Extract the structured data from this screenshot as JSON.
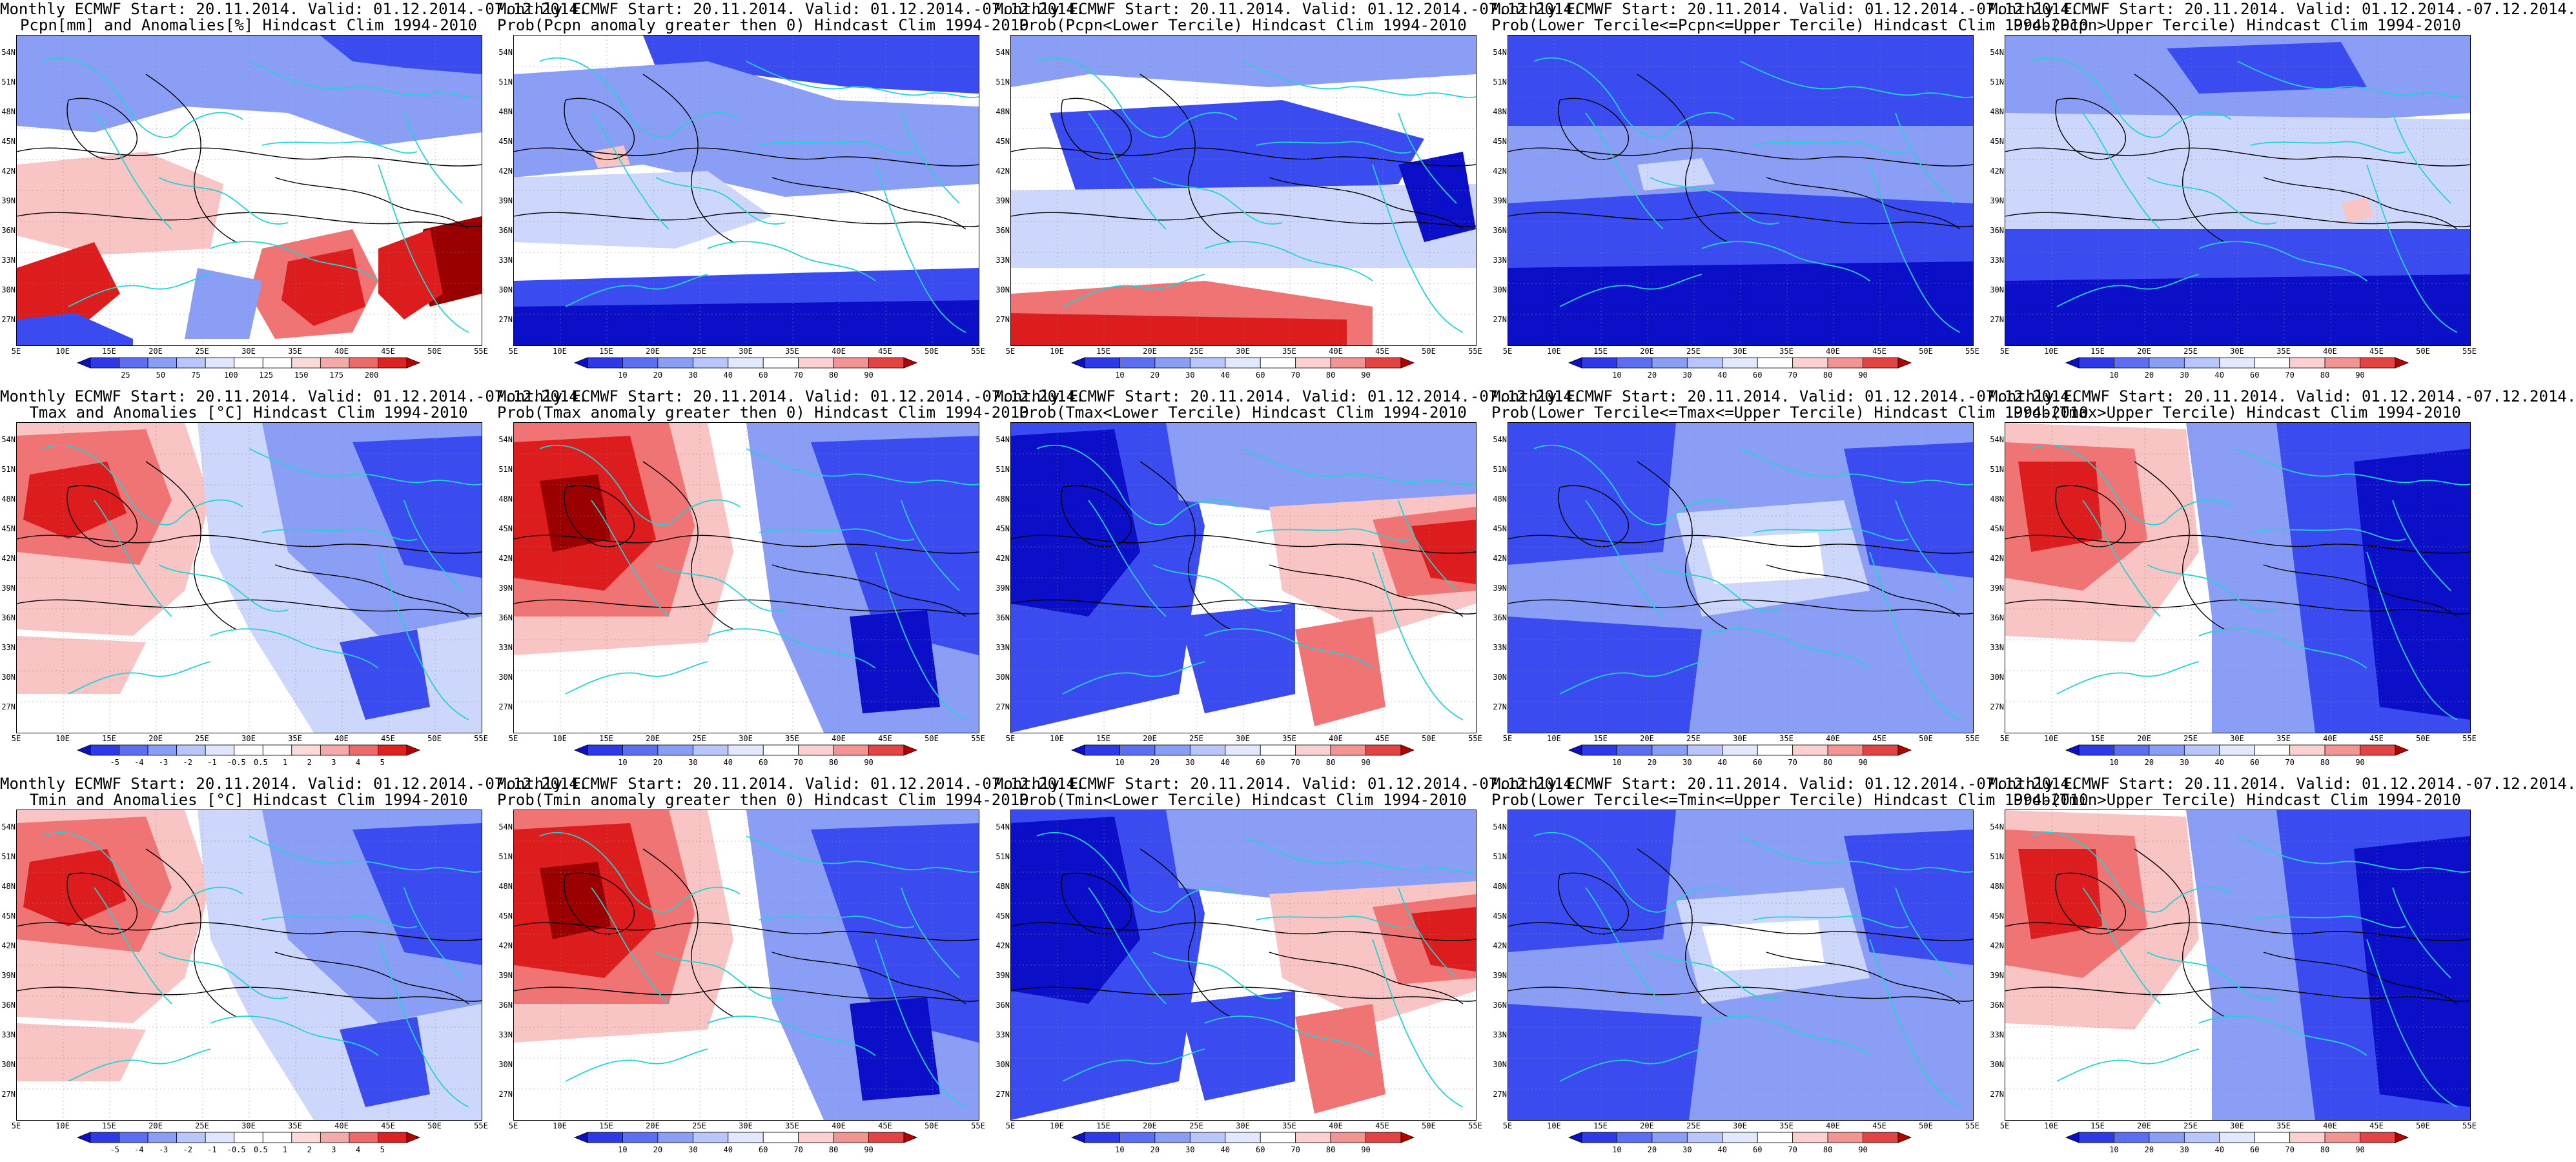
{
  "map_extent": {
    "lon_min": 5,
    "lon_max": 55,
    "lat_min": 25,
    "lat_max": 55
  },
  "x_ticks": [
    "5E",
    "10E",
    "15E",
    "20E",
    "25E",
    "30E",
    "35E",
    "40E",
    "45E",
    "50E",
    "55E"
  ],
  "y_ticks": [
    "54N",
    "51N",
    "48N",
    "45N",
    "42N",
    "39N",
    "36N",
    "33N",
    "30N",
    "27N"
  ],
  "colors": {
    "deep_blue": "#0b10c8",
    "mid_blue": "#3a4cf0",
    "light_blue": "#8a9ef6",
    "pale_blue": "#cdd6fb",
    "white": "#ffffff",
    "pale_red": "#f9c4c4",
    "light_red": "#f07474",
    "mid_red": "#dd1d1d",
    "deep_red": "#9a0000",
    "coast": "#22d3d3",
    "contour": "#000000"
  },
  "palettes": {
    "anom": [
      "#0b10c8",
      "#2e3ae8",
      "#5c6ef2",
      "#8a9ef6",
      "#b8c6fb",
      "#dfe6fd",
      "#ffffff",
      "#ffffff",
      "#fbdada",
      "#f5aaaa",
      "#ec6a6a",
      "#dd2222",
      "#b30000"
    ],
    "prob": [
      "#0b10c8",
      "#2e3ae8",
      "#5c6ef2",
      "#8a9ef6",
      "#b8c6fb",
      "#e2e8fd",
      "#ffffff",
      "#fbd0d0",
      "#f29494",
      "#e24444",
      "#b30000"
    ]
  },
  "rows": [
    {
      "id": "pcpn",
      "panels": [
        {
          "title1": "Monthly ECMWF Start: 20.11.2014. Valid: 01.12.2014.-07.12.2014.",
          "title2": "Pcpn[mm] and Anomalies[%] Hindcast Clim 1994-2010",
          "bar": "anom",
          "labels": [
            "25",
            "50",
            "75",
            "100",
            "125",
            "150",
            "175",
            "200"
          ],
          "pattern": "pcpn_anom"
        },
        {
          "title1": "Monthly ECMWF Start: 20.11.2014. Valid: 01.12.2014.-07.12.2014.",
          "title2": "Prob(Pcpn anomaly greater then 0) Hindcast Clim 1994-2010",
          "bar": "prob",
          "labels": [
            "10",
            "20",
            "30",
            "40",
            "60",
            "70",
            "80",
            "90"
          ],
          "pattern": "pcpn_gt0"
        },
        {
          "title1": "Monthly ECMWF Start: 20.11.2014. Valid: 01.12.2014.-07.12.2014.",
          "title2": "Prob(Pcpn<Lower Tercile) Hindcast Clim 1994-2010",
          "bar": "prob",
          "labels": [
            "10",
            "20",
            "30",
            "40",
            "60",
            "70",
            "80",
            "90"
          ],
          "pattern": "pcpn_lt"
        },
        {
          "title1": "Monthly ECMWF Start: 20.11.2014. Valid: 01.12.2014.-07.12.2014.",
          "title2": "Prob(Lower Tercile<=Pcpn<=Upper Tercile) Hindcast Clim 1994-2010",
          "bar": "prob",
          "labels": [
            "10",
            "20",
            "30",
            "40",
            "60",
            "70",
            "80",
            "90"
          ],
          "pattern": "pcpn_mid"
        },
        {
          "title1": "Monthly ECMWF Start: 20.11.2014. Valid: 01.12.2014.-07.12.2014.",
          "title2": "Prob(Pcpn>Upper Tercile) Hindcast Clim 1994-2010",
          "bar": "prob",
          "labels": [
            "10",
            "20",
            "30",
            "40",
            "60",
            "70",
            "80",
            "90"
          ],
          "pattern": "pcpn_ut"
        }
      ]
    },
    {
      "id": "tmax",
      "panels": [
        {
          "title1": "Monthly ECMWF Start: 20.11.2014. Valid: 01.12.2014.-07.12.2014.",
          "title2": "Tmax and Anomalies [°C] Hindcast Clim 1994-2010",
          "bar": "anom",
          "labels": [
            "-5",
            "-4",
            "-3",
            "-2",
            "-1",
            "-0.5",
            "0.5",
            "1",
            "2",
            "3",
            "4",
            "5"
          ],
          "pattern": "t_anom"
        },
        {
          "title1": "Monthly ECMWF Start: 20.11.2014. Valid: 01.12.2014.-07.12.2014.",
          "title2": "Prob(Tmax anomaly greater then 0) Hindcast Clim 1994-2010",
          "bar": "prob",
          "labels": [
            "10",
            "20",
            "30",
            "40",
            "60",
            "70",
            "80",
            "90"
          ],
          "pattern": "t_gt0"
        },
        {
          "title1": "Monthly ECMWF Start: 20.11.2014. Valid: 01.12.2014.-07.12.2014.",
          "title2": "Prob(Tmax<Lower Tercile) Hindcast Clim 1994-2010",
          "bar": "prob",
          "labels": [
            "10",
            "20",
            "30",
            "40",
            "60",
            "70",
            "80",
            "90"
          ],
          "pattern": "t_lt"
        },
        {
          "title1": "Monthly ECMWF Start: 20.11.2014. Valid: 01.12.2014.-07.12.2014.",
          "title2": "Prob(Lower Tercile<=Tmax<=Upper Tercile) Hindcast Clim 1994-2010",
          "bar": "prob",
          "labels": [
            "10",
            "20",
            "30",
            "40",
            "60",
            "70",
            "80",
            "90"
          ],
          "pattern": "t_mid"
        },
        {
          "title1": "Monthly ECMWF Start: 20.11.2014. Valid: 01.12.2014.-07.12.2014.",
          "title2": "Prob(Tmax>Upper Tercile) Hindcast Clim 1994-2010",
          "bar": "prob",
          "labels": [
            "10",
            "20",
            "30",
            "40",
            "60",
            "70",
            "80",
            "90"
          ],
          "pattern": "t_ut"
        }
      ]
    },
    {
      "id": "tmin",
      "panels": [
        {
          "title1": "Monthly ECMWF Start: 20.11.2014. Valid: 01.12.2014.-07.12.2014.",
          "title2": "Tmin and Anomalies [°C] Hindcast Clim 1994-2010",
          "bar": "anom",
          "labels": [
            "-5",
            "-4",
            "-3",
            "-2",
            "-1",
            "-0.5",
            "0.5",
            "1",
            "2",
            "3",
            "4",
            "5"
          ],
          "pattern": "t_anom"
        },
        {
          "title1": "Monthly ECMWF Start: 20.11.2014. Valid: 01.12.2014.-07.12.2014.",
          "title2": "Prob(Tmin anomaly greater then 0) Hindcast Clim 1994-2010",
          "bar": "prob",
          "labels": [
            "10",
            "20",
            "30",
            "40",
            "60",
            "70",
            "80",
            "90"
          ],
          "pattern": "t_gt0"
        },
        {
          "title1": "Monthly ECMWF Start: 20.11.2014. Valid: 01.12.2014.-07.12.2014.",
          "title2": "Prob(Tmin<Lower Tercile) Hindcast Clim 1994-2010",
          "bar": "prob",
          "labels": [
            "10",
            "20",
            "30",
            "40",
            "60",
            "70",
            "80",
            "90"
          ],
          "pattern": "t_lt"
        },
        {
          "title1": "Monthly ECMWF Start: 20.11.2014. Valid: 01.12.2014.-07.12.2014.",
          "title2": "Prob(Lower Tercile<=Tmin<=Upper Tercile) Hindcast Clim 1994-2010",
          "bar": "prob",
          "labels": [
            "10",
            "20",
            "30",
            "40",
            "60",
            "70",
            "80",
            "90"
          ],
          "pattern": "t_mid"
        },
        {
          "title1": "Monthly ECMWF Start: 20.11.2014. Valid: 01.12.2014.-07.12.2014.",
          "title2": "Prob(Tmin>Upper Tercile) Hindcast Clim 1994-2010",
          "bar": "prob",
          "labels": [
            "10",
            "20",
            "30",
            "40",
            "60",
            "70",
            "80",
            "90"
          ],
          "pattern": "t_ut"
        }
      ]
    }
  ]
}
